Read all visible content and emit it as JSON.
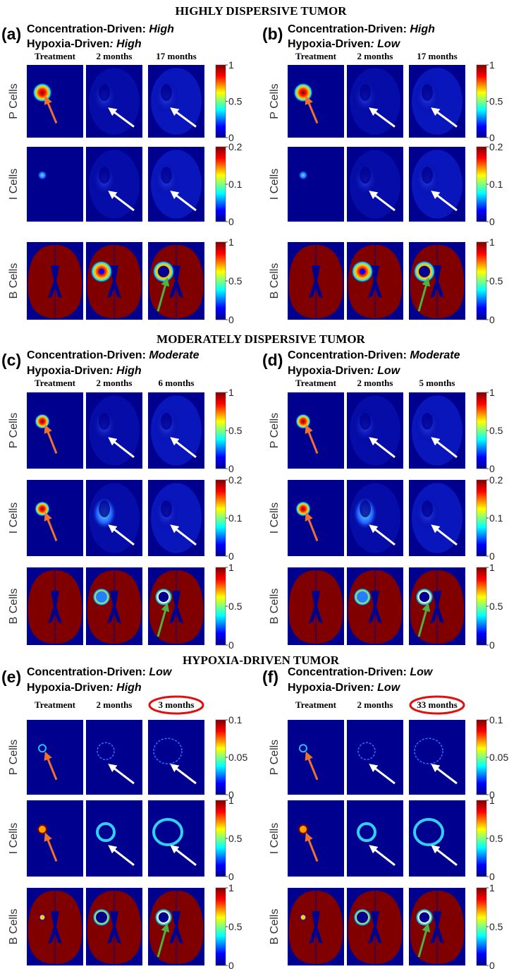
{
  "sections": [
    {
      "title": "HIGHLY DISPERSIVE TUMOR",
      "panels": [
        {
          "label": "(a)",
          "concentration_prefix": "Concentration-Driven: ",
          "concentration": "High",
          "hypoxia_prefix": "Hypoxia-Driven",
          "hypoxia": ": High",
          "columns": [
            "Treatment",
            "2 months",
            "17 months"
          ],
          "rows": [
            {
              "label": "P Cells",
              "ticks": [
                "1",
                "0.5",
                "0"
              ]
            },
            {
              "label": "I Cells",
              "ticks": [
                "0.2",
                "0.1",
                "0"
              ]
            },
            {
              "label": "B Cells",
              "ticks": [
                "1",
                "0.5",
                "0"
              ]
            }
          ]
        },
        {
          "label": "(b)",
          "concentration_prefix": "Concentration-Driven: ",
          "concentration": "High",
          "hypoxia_prefix": "Hypoxia-Driven",
          "hypoxia": ": Low",
          "columns": [
            "Treatment",
            "2 months",
            "17 months"
          ],
          "rows": [
            {
              "label": "P Cells",
              "ticks": [
                "1",
                "0.5",
                "0"
              ]
            },
            {
              "label": "I Cells",
              "ticks": [
                "0.2",
                "0.1",
                "0"
              ]
            },
            {
              "label": "B Cells",
              "ticks": [
                "1",
                "0.5",
                "0"
              ]
            }
          ]
        }
      ]
    },
    {
      "title": "MODERATELY DISPERSIVE TUMOR",
      "panels": [
        {
          "label": "(c)",
          "concentration_prefix": "Concentration-Driven: ",
          "concentration": "Moderate",
          "hypoxia_prefix": "Hypoxia-Driven",
          "hypoxia": ": High",
          "columns": [
            "Treatment",
            "2 months",
            "6 months"
          ],
          "rows": [
            {
              "label": "P Cells",
              "ticks": [
                "1",
                "0.5",
                "0"
              ]
            },
            {
              "label": "I Cells",
              "ticks": [
                "0.2",
                "0.1",
                "0"
              ]
            },
            {
              "label": "B Cells",
              "ticks": [
                "1",
                "0.5",
                "0"
              ]
            }
          ]
        },
        {
          "label": "(d)",
          "concentration_prefix": "Concentration-Driven: ",
          "concentration": "Moderate",
          "hypoxia_prefix": "Hypoxia-Driven",
          "hypoxia": ": Low",
          "columns": [
            "Treatment",
            "2 months",
            "5 months"
          ],
          "rows": [
            {
              "label": "P Cells",
              "ticks": [
                "1",
                "0.5",
                "0"
              ]
            },
            {
              "label": "I Cells",
              "ticks": [
                "0.2",
                "0.1",
                "0"
              ]
            },
            {
              "label": "B Cells",
              "ticks": [
                "1",
                "0.5",
                "0"
              ]
            }
          ]
        }
      ]
    },
    {
      "title": "HYPOXIA-DRIVEN TUMOR",
      "panels": [
        {
          "label": "(e)",
          "concentration_prefix": "Concentration-Driven: ",
          "concentration": "Low",
          "hypoxia_prefix": "Hypoxia-Driven",
          "hypoxia": ": High",
          "columns": [
            "Treatment",
            "2 months",
            "3 months"
          ],
          "rows": [
            {
              "label": "P Cells",
              "ticks": [
                "0.1",
                "0.05",
                "0"
              ]
            },
            {
              "label": "I Cells",
              "ticks": [
                "1",
                "0.5",
                "0"
              ]
            },
            {
              "label": "B Cells",
              "ticks": [
                "1",
                "0.5",
                "0"
              ]
            }
          ]
        },
        {
          "label": "(f)",
          "concentration_prefix": "Concentration-Driven: ",
          "concentration": "Low",
          "hypoxia_prefix": "Hypoxia-Driven",
          "hypoxia": ": Low",
          "columns": [
            "Treatment",
            "2 months",
            "33 months"
          ],
          "rows": [
            {
              "label": "P Cells",
              "ticks": [
                "0.1",
                "0.05",
                "0"
              ]
            },
            {
              "label": "I Cells",
              "ticks": [
                "1",
                "0.5",
                "0"
              ]
            },
            {
              "label": "B Cells",
              "ticks": [
                "1",
                "0.5",
                "0"
              ]
            }
          ]
        }
      ]
    }
  ]
}
